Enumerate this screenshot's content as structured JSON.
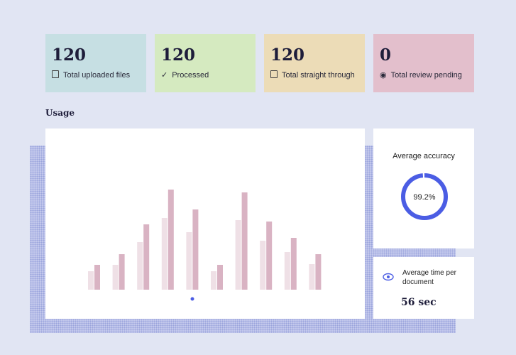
{
  "cards": [
    {
      "value": "120",
      "label": "Total uploaded files"
    },
    {
      "value": "120",
      "label": "Processed"
    },
    {
      "value": "120",
      "label": "Total straight through"
    },
    {
      "value": "0",
      "label": "Total review pending"
    }
  ],
  "usage": {
    "title": "Usage"
  },
  "accuracy": {
    "title": "Average accuracy",
    "value": "99.2%"
  },
  "time": {
    "title": "Average time per document",
    "value": "56 sec"
  },
  "chart_data": {
    "type": "bar",
    "ylim": [
      0,
      193
    ],
    "series": [
      {
        "color": "#efe0e6",
        "values": [
          26,
          35,
          67,
          101,
          81,
          26,
          98,
          69,
          53,
          36
        ]
      },
      {
        "color": "#d9b3c3",
        "values": [
          35,
          50,
          92,
          141,
          113,
          35,
          137,
          96,
          73,
          50
        ]
      }
    ]
  }
}
